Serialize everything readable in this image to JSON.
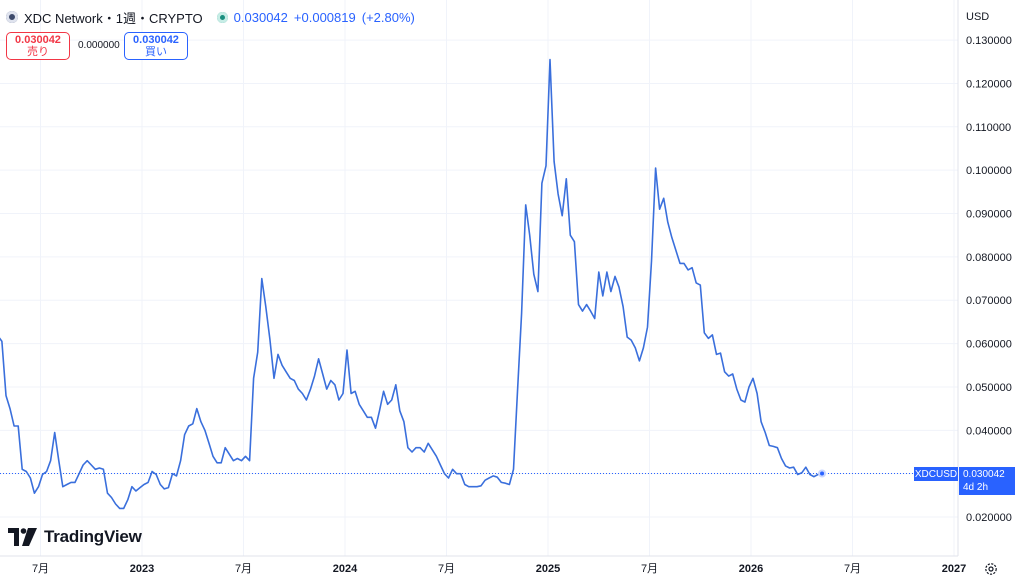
{
  "header": {
    "symbol_title": "XDC Network・1週・CRYPTO",
    "last_price": "0.030042",
    "change": "+0.000819",
    "change_pct": "(+2.80%)"
  },
  "order": {
    "sell_price": "0.030042",
    "sell_label": "売り",
    "spread": "0.000000",
    "buy_price": "0.030042",
    "buy_label": "買い"
  },
  "currency": "USD",
  "branding": {
    "name": "TradingView"
  },
  "price_label": {
    "symbol": "XDCUSD",
    "value": "0.030042",
    "countdown": "4d 2h"
  },
  "colors": {
    "line": "#3a6fdc",
    "accent": "#2962ff",
    "sell": "#f23645",
    "grid": "#f0f3fa"
  },
  "chart_data": {
    "type": "line",
    "title": "",
    "xlabel": "",
    "ylabel": "",
    "ylim": [
      0.015,
      0.13
    ],
    "x_ticks": [
      {
        "label": "7月",
        "t": 2022.5
      },
      {
        "label": "2023",
        "t": 2023.0
      },
      {
        "label": "7月",
        "t": 2023.5
      },
      {
        "label": "2024",
        "t": 2024.0
      },
      {
        "label": "7月",
        "t": 2024.5
      },
      {
        "label": "2025",
        "t": 2025.0
      },
      {
        "label": "7月",
        "t": 2025.5
      },
      {
        "label": "2026",
        "t": 2026.0
      },
      {
        "label": "7月",
        "t": 2026.5
      },
      {
        "label": "2027",
        "t": 2027.0
      }
    ],
    "y_ticks": [
      "0.020000",
      "0.030000",
      "0.040000",
      "0.050000",
      "0.060000",
      "0.070000",
      "0.080000",
      "0.090000",
      "0.100000",
      "0.110000",
      "0.120000",
      "0.130000"
    ],
    "series": [
      {
        "points": [
          [
            2022.29,
            0.0618
          ],
          [
            2022.31,
            0.0605
          ],
          [
            2022.33,
            0.048
          ],
          [
            2022.35,
            0.045
          ],
          [
            2022.37,
            0.041
          ],
          [
            2022.39,
            0.041
          ],
          [
            2022.41,
            0.031
          ],
          [
            2022.43,
            0.0305
          ],
          [
            2022.45,
            0.029
          ],
          [
            2022.47,
            0.0255
          ],
          [
            2022.49,
            0.027
          ],
          [
            2022.51,
            0.0298
          ],
          [
            2022.53,
            0.0305
          ],
          [
            2022.55,
            0.033
          ],
          [
            2022.57,
            0.0395
          ],
          [
            2022.59,
            0.033
          ],
          [
            2022.61,
            0.027
          ],
          [
            2022.63,
            0.0275
          ],
          [
            2022.65,
            0.028
          ],
          [
            2022.67,
            0.028
          ],
          [
            2022.69,
            0.03
          ],
          [
            2022.71,
            0.032
          ],
          [
            2022.73,
            0.033
          ],
          [
            2022.75,
            0.032
          ],
          [
            2022.77,
            0.031
          ],
          [
            2022.79,
            0.0313
          ],
          [
            2022.81,
            0.031
          ],
          [
            2022.83,
            0.0255
          ],
          [
            2022.85,
            0.0245
          ],
          [
            2022.87,
            0.023
          ],
          [
            2022.89,
            0.022
          ],
          [
            2022.91,
            0.022
          ],
          [
            2022.93,
            0.024
          ],
          [
            2022.95,
            0.027
          ],
          [
            2022.97,
            0.026
          ],
          [
            2022.99,
            0.0268
          ],
          [
            2023.01,
            0.0275
          ],
          [
            2023.03,
            0.028
          ],
          [
            2023.05,
            0.0305
          ],
          [
            2023.07,
            0.0298
          ],
          [
            2023.09,
            0.0275
          ],
          [
            2023.11,
            0.0265
          ],
          [
            2023.13,
            0.0268
          ],
          [
            2023.15,
            0.03
          ],
          [
            2023.17,
            0.0295
          ],
          [
            2023.19,
            0.033
          ],
          [
            2023.21,
            0.039
          ],
          [
            2023.23,
            0.041
          ],
          [
            2023.25,
            0.0415
          ],
          [
            2023.27,
            0.045
          ],
          [
            2023.29,
            0.042
          ],
          [
            2023.31,
            0.04
          ],
          [
            2023.33,
            0.037
          ],
          [
            2023.35,
            0.034
          ],
          [
            2023.37,
            0.0325
          ],
          [
            2023.39,
            0.0325
          ],
          [
            2023.41,
            0.036
          ],
          [
            2023.43,
            0.0345
          ],
          [
            2023.45,
            0.033
          ],
          [
            2023.47,
            0.0335
          ],
          [
            2023.49,
            0.033
          ],
          [
            2023.51,
            0.034
          ],
          [
            2023.53,
            0.033
          ],
          [
            2023.55,
            0.052
          ],
          [
            2023.57,
            0.058
          ],
          [
            2023.59,
            0.075
          ],
          [
            2023.61,
            0.0685
          ],
          [
            2023.63,
            0.061
          ],
          [
            2023.65,
            0.052
          ],
          [
            2023.67,
            0.0575
          ],
          [
            2023.69,
            0.055
          ],
          [
            2023.71,
            0.0535
          ],
          [
            2023.73,
            0.052
          ],
          [
            2023.75,
            0.0515
          ],
          [
            2023.77,
            0.0495
          ],
          [
            2023.79,
            0.0485
          ],
          [
            2023.81,
            0.047
          ],
          [
            2023.83,
            0.0495
          ],
          [
            2023.85,
            0.0525
          ],
          [
            2023.87,
            0.0565
          ],
          [
            2023.89,
            0.053
          ],
          [
            2023.91,
            0.0495
          ],
          [
            2023.93,
            0.0515
          ],
          [
            2023.95,
            0.0505
          ],
          [
            2023.97,
            0.047
          ],
          [
            2023.99,
            0.0485
          ],
          [
            2024.01,
            0.0585
          ],
          [
            2024.03,
            0.0485
          ],
          [
            2024.05,
            0.049
          ],
          [
            2024.07,
            0.046
          ],
          [
            2024.09,
            0.0445
          ],
          [
            2024.11,
            0.043
          ],
          [
            2024.13,
            0.043
          ],
          [
            2024.15,
            0.0405
          ],
          [
            2024.17,
            0.0445
          ],
          [
            2024.19,
            0.049
          ],
          [
            2024.21,
            0.046
          ],
          [
            2024.23,
            0.047
          ],
          [
            2024.25,
            0.0505
          ],
          [
            2024.27,
            0.0445
          ],
          [
            2024.29,
            0.042
          ],
          [
            2024.31,
            0.036
          ],
          [
            2024.33,
            0.035
          ],
          [
            2024.35,
            0.036
          ],
          [
            2024.37,
            0.036
          ],
          [
            2024.39,
            0.035
          ],
          [
            2024.41,
            0.037
          ],
          [
            2024.43,
            0.0355
          ],
          [
            2024.45,
            0.034
          ],
          [
            2024.47,
            0.032
          ],
          [
            2024.49,
            0.03
          ],
          [
            2024.51,
            0.029
          ],
          [
            2024.53,
            0.031
          ],
          [
            2024.55,
            0.03
          ],
          [
            2024.57,
            0.03
          ],
          [
            2024.59,
            0.0275
          ],
          [
            2024.61,
            0.027
          ],
          [
            2024.63,
            0.027
          ],
          [
            2024.65,
            0.027
          ],
          [
            2024.67,
            0.0272
          ],
          [
            2024.69,
            0.0285
          ],
          [
            2024.71,
            0.029
          ],
          [
            2024.73,
            0.0295
          ],
          [
            2024.75,
            0.0292
          ],
          [
            2024.77,
            0.028
          ],
          [
            2024.79,
            0.0278
          ],
          [
            2024.81,
            0.0275
          ],
          [
            2024.83,
            0.031
          ],
          [
            2024.85,
            0.049
          ],
          [
            2024.87,
            0.067
          ],
          [
            2024.89,
            0.092
          ],
          [
            2024.91,
            0.085
          ],
          [
            2024.93,
            0.076
          ],
          [
            2024.95,
            0.072
          ],
          [
            2024.97,
            0.097
          ],
          [
            2024.99,
            0.101
          ],
          [
            2025.01,
            0.1255
          ],
          [
            2025.03,
            0.102
          ],
          [
            2025.05,
            0.0945
          ],
          [
            2025.07,
            0.0895
          ],
          [
            2025.09,
            0.098
          ],
          [
            2025.11,
            0.085
          ],
          [
            2025.13,
            0.0835
          ],
          [
            2025.15,
            0.069
          ],
          [
            2025.17,
            0.0675
          ],
          [
            2025.19,
            0.069
          ],
          [
            2025.21,
            0.0675
          ],
          [
            2025.23,
            0.0658
          ],
          [
            2025.25,
            0.0765
          ],
          [
            2025.27,
            0.071
          ],
          [
            2025.29,
            0.0765
          ],
          [
            2025.31,
            0.072
          ],
          [
            2025.33,
            0.0755
          ],
          [
            2025.35,
            0.073
          ],
          [
            2025.37,
            0.0685
          ],
          [
            2025.39,
            0.0615
          ],
          [
            2025.41,
            0.0608
          ],
          [
            2025.43,
            0.059
          ],
          [
            2025.45,
            0.056
          ],
          [
            2025.47,
            0.059
          ],
          [
            2025.49,
            0.0638
          ],
          [
            2025.51,
            0.079
          ],
          [
            2025.53,
            0.1005
          ],
          [
            2025.55,
            0.091
          ],
          [
            2025.57,
            0.0935
          ],
          [
            2025.59,
            0.088
          ],
          [
            2025.61,
            0.0845
          ],
          [
            2025.63,
            0.0815
          ],
          [
            2025.65,
            0.0785
          ],
          [
            2025.67,
            0.0785
          ],
          [
            2025.69,
            0.077
          ],
          [
            2025.71,
            0.0775
          ],
          [
            2025.73,
            0.074
          ],
          [
            2025.75,
            0.0735
          ],
          [
            2025.77,
            0.0625
          ],
          [
            2025.79,
            0.0612
          ],
          [
            2025.81,
            0.062
          ],
          [
            2025.83,
            0.0575
          ],
          [
            2025.85,
            0.0578
          ],
          [
            2025.87,
            0.0535
          ],
          [
            2025.89,
            0.0525
          ],
          [
            2025.91,
            0.053
          ],
          [
            2025.93,
            0.0495
          ],
          [
            2025.95,
            0.047
          ],
          [
            2025.97,
            0.0465
          ],
          [
            2025.99,
            0.05
          ],
          [
            2026.01,
            0.052
          ],
          [
            2026.03,
            0.0485
          ],
          [
            2026.05,
            0.042
          ],
          [
            2026.07,
            0.0395
          ],
          [
            2026.09,
            0.0365
          ],
          [
            2026.11,
            0.0363
          ],
          [
            2026.13,
            0.036
          ],
          [
            2026.15,
            0.0335
          ],
          [
            2026.17,
            0.0318
          ],
          [
            2026.19,
            0.0313
          ],
          [
            2026.21,
            0.0315
          ],
          [
            2026.23,
            0.0298
          ],
          [
            2026.25,
            0.0302
          ],
          [
            2026.27,
            0.0315
          ],
          [
            2026.29,
            0.0298
          ],
          [
            2026.31,
            0.0293
          ],
          [
            2026.33,
            0.0298
          ],
          [
            2026.35,
            0.030042
          ]
        ]
      }
    ]
  }
}
